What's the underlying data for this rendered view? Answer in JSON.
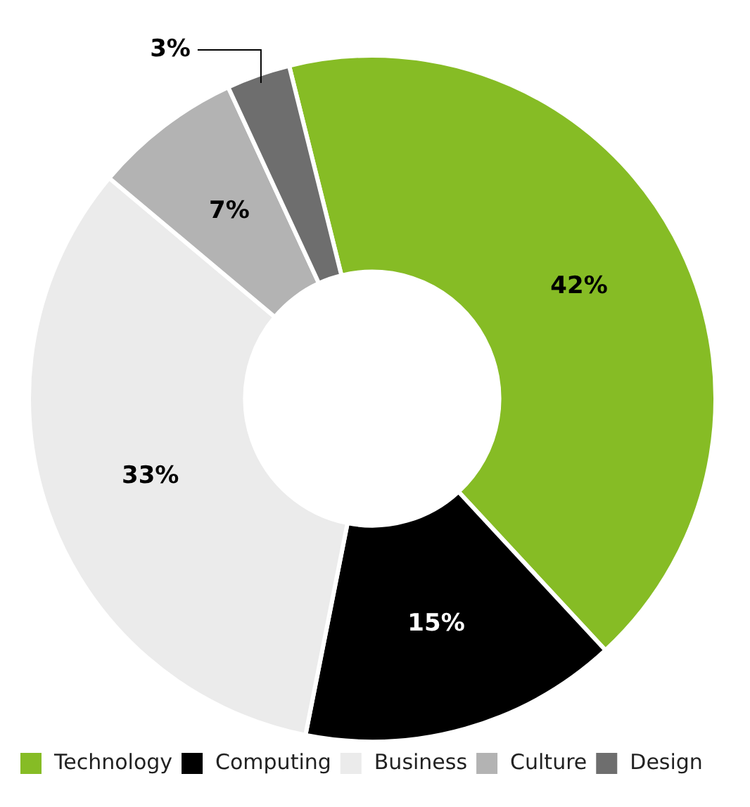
{
  "chart_data": {
    "type": "donut",
    "categories": [
      "Technology",
      "Computing",
      "Business",
      "Culture",
      "Design"
    ],
    "values": [
      42,
      15,
      33,
      7,
      3
    ],
    "colors": [
      "#86bc25",
      "#000000",
      "#ebebeb",
      "#b3b3b3",
      "#6e6e6e"
    ],
    "value_labels": [
      "42%",
      "15%",
      "33%",
      "7%",
      "3%"
    ],
    "legend": "bottom left"
  }
}
